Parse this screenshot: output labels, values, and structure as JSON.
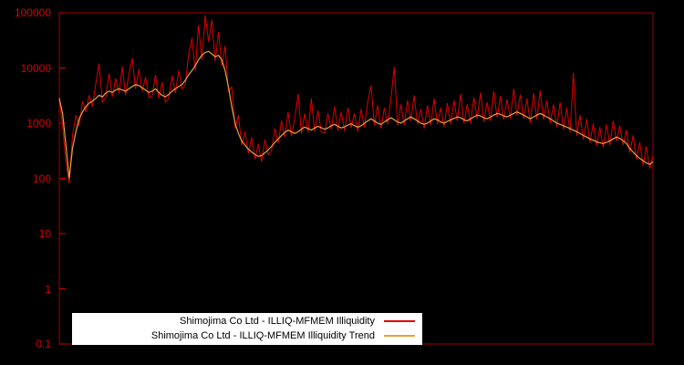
{
  "chart_data": {
    "type": "line",
    "title": "",
    "xlabel": "",
    "ylabel": "",
    "yscale": "log",
    "ylim": [
      0.1,
      100000
    ],
    "ytick_labels": [
      "100000",
      "10000",
      "1000",
      "100",
      "10",
      "1",
      "0.1"
    ],
    "grid": false,
    "legend_position": "bottom-left",
    "colors": {
      "background": "#000000",
      "axis_border": "#9b0000",
      "tick_text": "#dd0000",
      "legend_background": "#ffffff",
      "legend_text": "#000000"
    },
    "series": [
      {
        "name": "Shimojima Co Ltd - ILLIQ-MFMEM Illiquidity",
        "color": "#dd0000",
        "values": [
          3000,
          900,
          200,
          80,
          600,
          1400,
          900,
          2500,
          1600,
          3200,
          2000,
          5200,
          12000,
          2400,
          2900,
          8000,
          3000,
          6500,
          3500,
          10500,
          3200,
          7800,
          15000,
          4200,
          9500,
          3800,
          6800,
          2900,
          3100,
          7500,
          2800,
          5500,
          2400,
          2800,
          7200,
          3500,
          9000,
          4200,
          5000,
          18000,
          35000,
          9000,
          60000,
          14000,
          90000,
          30000,
          75000,
          13000,
          45000,
          11000,
          25000,
          3800,
          4500,
          800,
          1400,
          400,
          700,
          280,
          550,
          220,
          420,
          200,
          500,
          270,
          320,
          800,
          430,
          1100,
          560,
          1600,
          580,
          1200,
          3400,
          650,
          1500,
          680,
          2800,
          700,
          1700,
          690,
          650,
          1500,
          760,
          2000,
          740,
          1600,
          720,
          1900,
          820,
          1500,
          700,
          1800,
          840,
          2400,
          4800,
          900,
          2100,
          800,
          1900,
          950,
          2800,
          10500,
          900,
          2200,
          920,
          2600,
          1100,
          3200,
          950,
          1800,
          800,
          2100,
          920,
          2800,
          960,
          1900,
          850,
          2300,
          970,
          2600,
          1100,
          3400,
          980,
          2200,
          1000,
          2900,
          1200,
          3600,
          1050,
          2400,
          1100,
          3800,
          1250,
          3100,
          1150,
          2700,
          1200,
          4200,
          1350,
          3300,
          1200,
          2800,
          1000,
          3500,
          1180,
          3900,
          1150,
          2600,
          1000,
          2200,
          850,
          2400,
          760,
          1900,
          680,
          8200,
          590,
          1400,
          500,
          1200,
          440,
          980,
          390,
          850,
          360,
          950,
          400,
          1100,
          470,
          900,
          400,
          750,
          290,
          600,
          220,
          450,
          170,
          380,
          150,
          260
        ]
      },
      {
        "name": "Shimojima Co Ltd - ILLIQ-MFMEM Illiquidity Trend",
        "color": "#e6a33c",
        "values": [
          2800,
          1500,
          400,
          100,
          350,
          700,
          1200,
          1600,
          2000,
          2300,
          2500,
          2800,
          3200,
          3000,
          3500,
          3800,
          3600,
          4000,
          4200,
          4000,
          3800,
          4200,
          4600,
          5000,
          4800,
          4400,
          4000,
          3600,
          3800,
          4200,
          3600,
          3200,
          3000,
          3300,
          3800,
          4200,
          4600,
          5000,
          6000,
          7500,
          9000,
          11000,
          14000,
          17000,
          19000,
          20000,
          18000,
          16000,
          17000,
          14000,
          9000,
          4500,
          2000,
          1000,
          650,
          480,
          400,
          340,
          300,
          270,
          250,
          260,
          290,
          330,
          380,
          450,
          520,
          600,
          680,
          750,
          700,
          650,
          700,
          780,
          850,
          800,
          750,
          820,
          880,
          830,
          780,
          820,
          900,
          950,
          880,
          820,
          860,
          920,
          980,
          900,
          850,
          900,
          1000,
          1100,
          1200,
          1100,
          1000,
          950,
          1050,
          1150,
          1250,
          1150,
          1050,
          1000,
          1100,
          1200,
          1300,
          1200,
          1100,
          1000,
          950,
          1000,
          1100,
          1200,
          1150,
          1050,
          1000,
          1080,
          1150,
          1220,
          1300,
          1250,
          1150,
          1100,
          1200,
          1300,
          1400,
          1350,
          1250,
          1200,
          1300,
          1400,
          1500,
          1450,
          1350,
          1300,
          1400,
          1500,
          1600,
          1500,
          1400,
          1300,
          1200,
          1300,
          1400,
          1500,
          1400,
          1300,
          1200,
          1100,
          1000,
          950,
          900,
          850,
          800,
          750,
          700,
          650,
          600,
          560,
          520,
          490,
          460,
          440,
          430,
          450,
          480,
          520,
          560,
          530,
          480,
          430,
          350,
          300,
          260,
          230,
          210,
          190,
          180,
          200
        ]
      }
    ]
  }
}
